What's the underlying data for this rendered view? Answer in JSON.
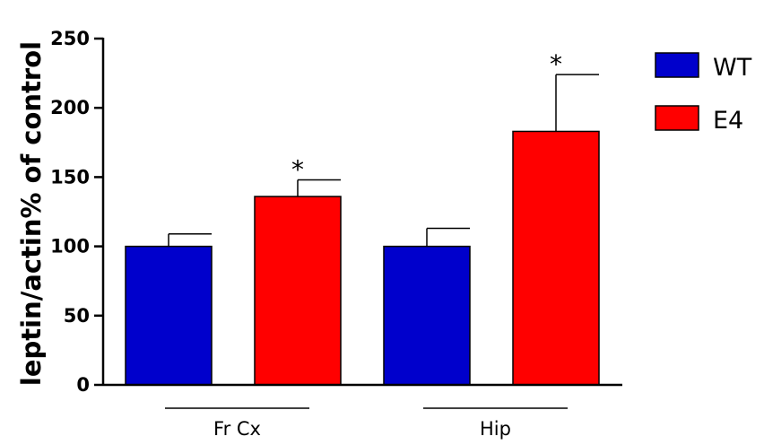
{
  "chart_data": {
    "type": "bar",
    "title": "",
    "xlabel": "",
    "ylabel": "leptin/actin% of control",
    "ylim": [
      0,
      250
    ],
    "yticks": [
      0,
      50,
      100,
      150,
      200,
      250
    ],
    "categories": [
      "Fr Cx",
      "Hip"
    ],
    "series": [
      {
        "name": "WT",
        "color": "#0000cc",
        "values": [
          100,
          100
        ],
        "errors": [
          9,
          13
        ]
      },
      {
        "name": "E4",
        "color": "#ff0000",
        "values": [
          136,
          183
        ],
        "errors": [
          12,
          41
        ]
      }
    ],
    "annotations": [
      {
        "series": "E4",
        "category": "Fr Cx",
        "text": "*"
      },
      {
        "series": "E4",
        "category": "Hip",
        "text": "*"
      }
    ],
    "legend": "right",
    "grid": false
  }
}
